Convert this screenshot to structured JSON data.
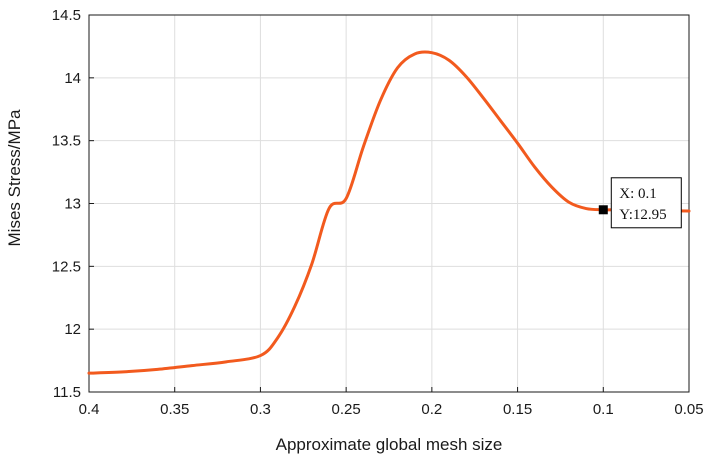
{
  "chart_data": {
    "type": "line",
    "title": "",
    "xlabel": "Approximate global mesh size",
    "ylabel": "Mises Stress/MPa",
    "xlim": [
      0.05,
      0.4
    ],
    "x_reversed": true,
    "ylim": [
      11.5,
      14.5
    ],
    "x_ticks": [
      0.4,
      0.35,
      0.3,
      0.25,
      0.2,
      0.15,
      0.1,
      0.05
    ],
    "x_tick_labels": [
      "0.4",
      "0.35",
      "0.3",
      "0.25",
      "0.2",
      "0.15",
      "0.1",
      "0.05"
    ],
    "y_ticks": [
      11.5,
      12,
      12.5,
      13,
      13.5,
      14,
      14.5
    ],
    "y_tick_labels": [
      "11.5",
      "12",
      "12.5",
      "13",
      "13.5",
      "14",
      "14.5"
    ],
    "grid": true,
    "legend": "none",
    "series": [
      {
        "color": "#f25a1e",
        "x": [
          0.4,
          0.38,
          0.36,
          0.34,
          0.32,
          0.3,
          0.29,
          0.28,
          0.27,
          0.26,
          0.25,
          0.24,
          0.23,
          0.22,
          0.21,
          0.2,
          0.19,
          0.18,
          0.17,
          0.16,
          0.15,
          0.14,
          0.13,
          0.12,
          0.11,
          0.1,
          0.09,
          0.08,
          0.07,
          0.06,
          0.05
        ],
        "y": [
          11.65,
          11.66,
          11.68,
          11.71,
          11.74,
          11.79,
          11.93,
          12.18,
          12.52,
          12.96,
          13.04,
          13.45,
          13.82,
          14.08,
          14.19,
          14.2,
          14.14,
          14.01,
          13.84,
          13.66,
          13.48,
          13.29,
          13.13,
          13.01,
          12.96,
          12.95,
          12.95,
          12.945,
          12.943,
          12.942,
          12.94
        ]
      }
    ],
    "annotation": {
      "x": 0.1,
      "y": 12.95,
      "line1": "X: 0.1",
      "line2": "Y:12.95"
    }
  }
}
